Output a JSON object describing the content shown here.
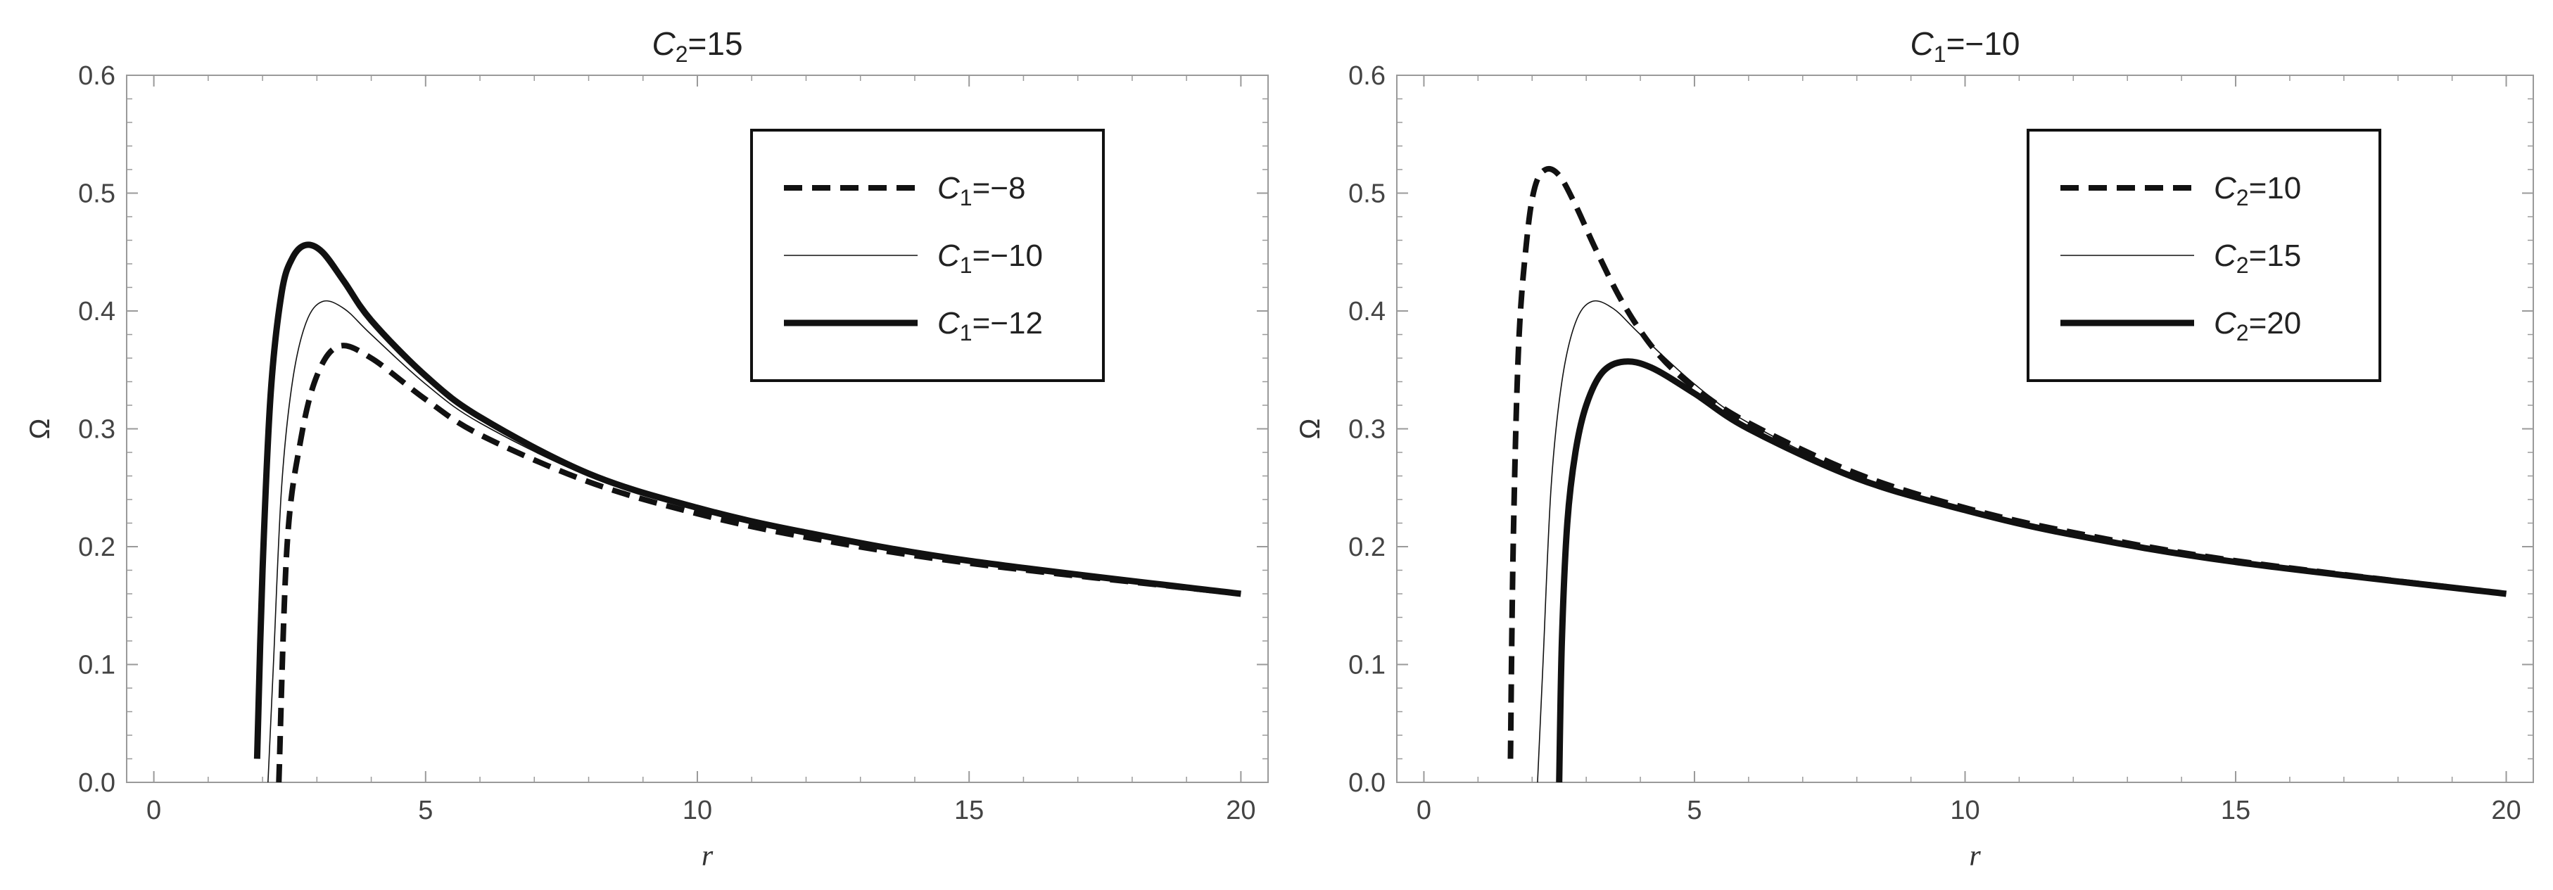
{
  "chart_data": [
    {
      "type": "line",
      "title": {
        "var": "C",
        "sub": "2",
        "rest": "=15"
      },
      "xlabel": "r",
      "ylabel": "Ω",
      "xlim": [
        -0.5,
        20.5
      ],
      "ylim": [
        0,
        0.6
      ],
      "xticks": [
        "0",
        "5",
        "10",
        "15",
        "20"
      ],
      "yticks": [
        "0.0",
        "0.1",
        "0.2",
        "0.3",
        "0.4",
        "0.5",
        "0.6"
      ],
      "legend_position": "top-right",
      "series": [
        {
          "name": {
            "var": "C",
            "sub": "1",
            "rest": "=−8"
          },
          "style": "dashed",
          "x": [
            2.3,
            2.45,
            2.7,
            3.0,
            3.4,
            4.0,
            5.0,
            6.0,
            8.0,
            10.0,
            12.0,
            15.0,
            20.0
          ],
          "y": [
            0.0,
            0.2,
            0.29,
            0.345,
            0.37,
            0.36,
            0.325,
            0.295,
            0.255,
            0.228,
            0.208,
            0.186,
            0.16
          ]
        },
        {
          "name": {
            "var": "C",
            "sub": "1",
            "rest": "=−10"
          },
          "style": "thin",
          "x": [
            2.1,
            2.2,
            2.35,
            2.55,
            2.8,
            3.1,
            3.5,
            4.0,
            5.0,
            6.0,
            8.0,
            10.0,
            12.0,
            15.0,
            20.0
          ],
          "y": [
            0.0,
            0.1,
            0.25,
            0.34,
            0.39,
            0.408,
            0.402,
            0.38,
            0.338,
            0.305,
            0.26,
            0.232,
            0.211,
            0.188,
            0.16
          ]
        },
        {
          "name": {
            "var": "C",
            "sub": "1",
            "rest": "=−12"
          },
          "style": "thick",
          "x": [
            1.9,
            2.0,
            2.15,
            2.35,
            2.55,
            2.8,
            3.1,
            3.5,
            4.0,
            5.0,
            6.0,
            8.0,
            10.0,
            12.0,
            15.0,
            20.0
          ],
          "y": [
            0.02,
            0.18,
            0.33,
            0.415,
            0.445,
            0.456,
            0.45,
            0.425,
            0.392,
            0.345,
            0.31,
            0.262,
            0.233,
            0.212,
            0.188,
            0.16
          ]
        }
      ]
    },
    {
      "type": "line",
      "title": {
        "var": "C",
        "sub": "1",
        "rest": "=−10"
      },
      "xlabel": "r",
      "ylabel": "Ω",
      "xlim": [
        -0.5,
        20.5
      ],
      "ylim": [
        0,
        0.6
      ],
      "xticks": [
        "0",
        "5",
        "10",
        "15",
        "20"
      ],
      "yticks": [
        "0.0",
        "0.1",
        "0.2",
        "0.3",
        "0.4",
        "0.5",
        "0.6"
      ],
      "legend_position": "top-right",
      "series": [
        {
          "name": {
            "var": "C",
            "sub": "2",
            "rest": "=10"
          },
          "style": "dashed",
          "x": [
            1.6,
            1.65,
            1.75,
            1.9,
            2.05,
            2.25,
            2.5,
            2.8,
            3.2,
            3.7,
            4.3,
            5.0,
            6.0,
            8.0,
            10.0,
            12.0,
            15.0,
            20.0
          ],
          "y": [
            0.02,
            0.2,
            0.37,
            0.46,
            0.505,
            0.52,
            0.515,
            0.49,
            0.45,
            0.405,
            0.365,
            0.335,
            0.305,
            0.262,
            0.233,
            0.212,
            0.188,
            0.16
          ]
        },
        {
          "name": {
            "var": "C",
            "sub": "2",
            "rest": "=15"
          },
          "style": "thin",
          "x": [
            2.1,
            2.2,
            2.35,
            2.55,
            2.8,
            3.1,
            3.5,
            4.0,
            5.0,
            6.0,
            8.0,
            10.0,
            12.0,
            15.0,
            20.0
          ],
          "y": [
            0.0,
            0.1,
            0.25,
            0.34,
            0.39,
            0.408,
            0.402,
            0.38,
            0.338,
            0.305,
            0.26,
            0.232,
            0.211,
            0.188,
            0.16
          ]
        },
        {
          "name": {
            "var": "C",
            "sub": "2",
            "rest": "=20"
          },
          "style": "thick",
          "x": [
            2.5,
            2.55,
            2.65,
            2.8,
            3.0,
            3.3,
            3.7,
            4.2,
            5.0,
            6.0,
            8.0,
            10.0,
            12.0,
            15.0,
            20.0
          ],
          "y": [
            0.0,
            0.12,
            0.22,
            0.28,
            0.32,
            0.348,
            0.357,
            0.352,
            0.33,
            0.3,
            0.258,
            0.231,
            0.21,
            0.187,
            0.16
          ]
        }
      ]
    }
  ]
}
